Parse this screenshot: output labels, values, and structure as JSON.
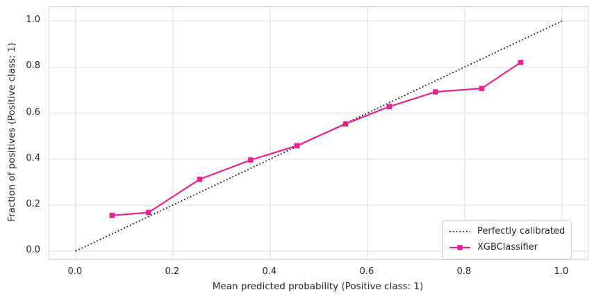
{
  "chart_data": {
    "type": "line",
    "title": "",
    "xlabel": "Mean predicted probability (Positive class: 1)",
    "ylabel": "Fraction of positives (Positive class: 1)",
    "x_ticks": [
      0.0,
      0.2,
      0.4,
      0.6,
      0.8,
      1.0
    ],
    "x_tick_labels": [
      "0.0",
      "0.2",
      "0.4",
      "0.6",
      "0.8",
      "1.0"
    ],
    "y_ticks": [
      0.0,
      0.2,
      0.4,
      0.6,
      0.8,
      1.0
    ],
    "y_tick_labels": [
      "0.0",
      "0.2",
      "0.4",
      "0.6",
      "0.8",
      "1.0"
    ],
    "xlim": [
      -0.054,
      1.053
    ],
    "ylim": [
      -0.036,
      1.061
    ],
    "grid": true,
    "legend_position": "lower right",
    "series": [
      {
        "name": "Perfectly calibrated",
        "style": "dotted",
        "marker": "none",
        "color": "#1a1a1a",
        "x": [
          0.0,
          1.0
        ],
        "y": [
          0.0,
          1.0
        ]
      },
      {
        "name": "XGBClassifier",
        "style": "solid",
        "marker": "square",
        "color": "#e8218f",
        "x": [
          0.075,
          0.15,
          0.255,
          0.36,
          0.455,
          0.555,
          0.645,
          0.74,
          0.835,
          0.915
        ],
        "y": [
          0.155,
          0.168,
          0.312,
          0.396,
          0.458,
          0.553,
          0.628,
          0.692,
          0.707,
          0.82
        ]
      }
    ]
  },
  "colors": {
    "background": "#ffffff",
    "grid": "#dcdcdc",
    "axis_border": "#d3d3d3",
    "text": "#262626"
  }
}
